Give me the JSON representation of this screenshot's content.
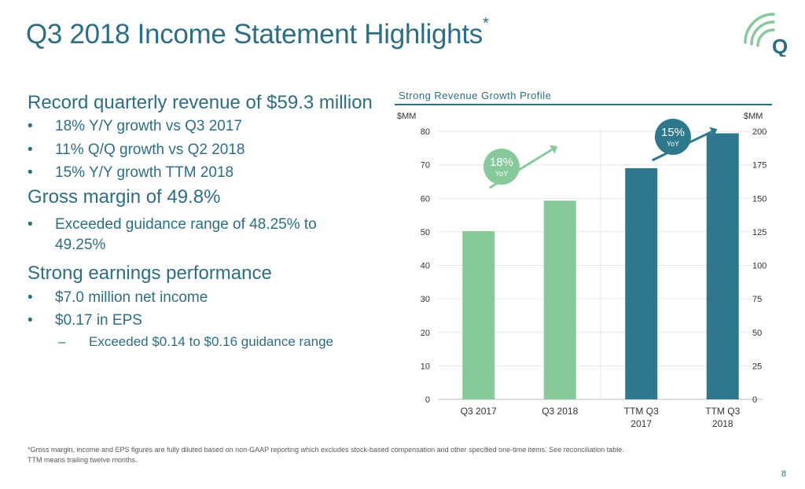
{
  "slide": {
    "title": "Q3 2018 Income Statement Highlights",
    "title_mark": "*",
    "page_number": "8",
    "footnote_line1": "*Gross margin, income and EPS figures are fully diluted based on non-GAAP reporting which excludes stock-based compensation and other specified one-time items. See reconciliation table.",
    "footnote_line2": "TTM means trailing twelve months."
  },
  "logo": {
    "icon": "q-signal-logo-icon",
    "letter": "Q"
  },
  "content": {
    "sections": [
      {
        "heading": "Record quarterly revenue of $59.3 million",
        "bullets": [
          "18% Y/Y growth vs Q3 2017",
          "11% Q/Q growth vs Q2 2018",
          "15% Y/Y growth TTM 2018"
        ]
      },
      {
        "heading": "Gross margin of 49.8%",
        "bullets": [
          "Exceeded guidance range of 48.25% to 49.25%"
        ]
      },
      {
        "heading": "Strong earnings performance",
        "bullets": [
          "$7.0 million net income",
          "$0.17 in EPS"
        ],
        "sub_bullets": [
          "Exceeded $0.14 to $0.16 guidance range"
        ]
      }
    ],
    "bullet_symbol": "•",
    "sub_bullet_symbol": "–"
  },
  "chart_data": {
    "type": "bar",
    "title": "Strong Revenue Growth Profile",
    "left_axis": {
      "unit_label": "$MM",
      "ylim": [
        0,
        80
      ],
      "ticks": [
        0,
        10,
        20,
        30,
        40,
        50,
        60,
        70,
        80
      ]
    },
    "right_axis": {
      "unit_label": "$MM",
      "ylim": [
        0,
        200
      ],
      "ticks": [
        0,
        25,
        50,
        75,
        100,
        125,
        150,
        175,
        200
      ]
    },
    "categories": [
      [
        "Q3 2017"
      ],
      [
        "Q3 2018"
      ],
      [
        "TTM Q3",
        "2017"
      ],
      [
        "TTM Q3",
        "2018"
      ]
    ],
    "bars": [
      {
        "value": 50.2,
        "axis": "left",
        "color": "#87c99a"
      },
      {
        "value": 59.3,
        "axis": "left",
        "color": "#87c99a"
      },
      {
        "value": 172.5,
        "axis": "right",
        "color": "#2e788e"
      },
      {
        "value": 198.5,
        "axis": "right",
        "color": "#2e788e"
      }
    ],
    "annotations": [
      {
        "pct": "18%",
        "sub": "YoY",
        "color": "#87c99a"
      },
      {
        "pct": "15%",
        "sub": "YoY",
        "color": "#2e788e"
      }
    ],
    "grid": true,
    "separator_after_category": 2
  }
}
